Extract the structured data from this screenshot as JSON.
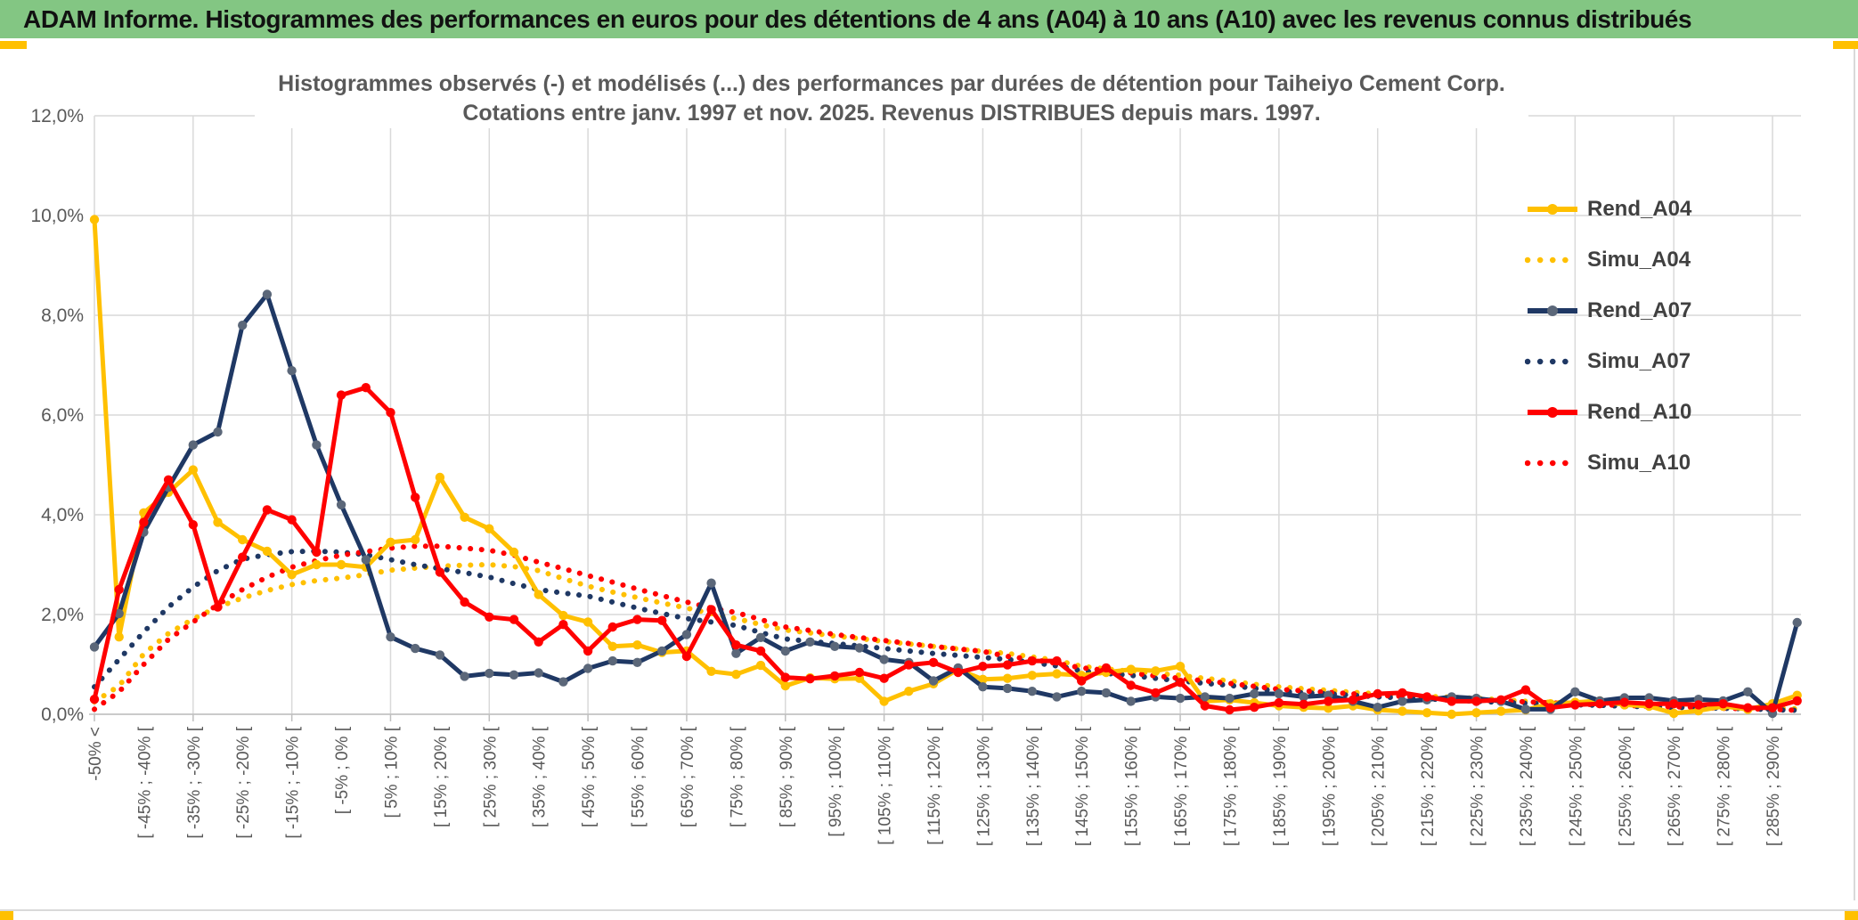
{
  "page": {
    "header_title": "ADAM Informe. Histogrammes des performances en euros pour des détentions de 4 ans (A04) à 10 ans (A10) avec les revenus connus distribués"
  },
  "chart": {
    "title_line1": "Histogrammes observés (-) et modélisés (...) des performances par durées de détention pour Taiheiyo Cement Corp.",
    "title_line2": "Cotations entre janv. 1997 et nov. 2025. Revenus DISTRIBUES depuis mars. 1997.",
    "colors": {
      "header_green": "#83C683",
      "accent_gold": "#FFC000",
      "series_gold": "#FFC000",
      "series_navy": "#1F3864",
      "navy_marker_gray": "#5B6779",
      "series_red": "#FF0000",
      "grid_gray": "#D9D9D9",
      "axis_gray": "#BFBFBF",
      "text_gray": "#595959",
      "legend_text": "#404040"
    }
  },
  "chart_data": {
    "type": "line",
    "title": "Histogrammes observés (-) et modélisés (...) des performances par durées de détention pour Taiheiyo Cement Corp.",
    "subtitle": "Cotations entre janv. 1997 et nov. 2025. Revenus DISTRIBUES depuis mars. 1997.",
    "xlabel": "",
    "ylabel": "",
    "ylim": [
      0,
      12
    ],
    "grid": true,
    "legend_position": "right",
    "y_ticks": [
      "0,0%",
      "2,0%",
      "4,0%",
      "6,0%",
      "8,0%",
      "10,0%",
      "12,0%"
    ],
    "n_points": 70,
    "bin_width_pct": 5,
    "label_every_n_points": 2,
    "x_tick_labels": [
      "-50% <",
      "[ -45% ; -40% [",
      "[ -35% ; -30% [",
      "[ -25% ; -20% [",
      "[ -15% ; -10% [",
      "[ -5% ; 0% [",
      "[ 5% ; 10% [",
      "[ 15% ; 20% [",
      "[ 25% ; 30% [",
      "[ 35% ; 40% [",
      "[ 45% ; 50% [",
      "[ 55% ; 60% [",
      "[ 65% ; 70% [",
      "[ 75% ; 80% [",
      "[ 85% ; 90% [",
      "[ 95% ; 100% [",
      "[ 105% ; 110% [",
      "[ 115% ; 120% [",
      "[ 125% ; 130% [",
      "[ 135% ; 140% [",
      "[ 145% ; 150% [",
      "[ 155% ; 160% [",
      "[ 165% ; 170% [",
      "[ 175% ; 180% [",
      "[ 185% ; 190% [",
      "[ 195% ; 200% [",
      "[ 205% ; 210% [",
      "[ 215% ; 220% [",
      "[ 225% ; 230% [",
      "[ 235% ; 240% [",
      "[ 245% ; 250% [",
      "[ 255% ; 260% [",
      "[ 265% ; 270% [",
      "[ 275% ; 280% [",
      "[ 285% ; 290% ["
    ],
    "series": [
      {
        "name": "Rend_A04",
        "color": "#FFC000",
        "style": "solid",
        "marker": true,
        "marker_color": "#FFC000",
        "values": [
          9.92,
          1.55,
          4.04,
          4.45,
          4.9,
          3.85,
          3.5,
          3.27,
          2.8,
          3.0,
          3.0,
          2.95,
          3.45,
          3.5,
          4.75,
          3.95,
          3.72,
          3.25,
          2.4,
          1.98,
          1.85,
          1.36,
          1.39,
          1.24,
          1.27,
          0.86,
          0.8,
          0.98,
          0.57,
          0.73,
          0.71,
          0.72,
          0.26,
          0.46,
          0.61,
          0.9,
          0.7,
          0.72,
          0.78,
          0.81,
          0.78,
          0.84,
          0.9,
          0.87,
          0.96,
          0.26,
          0.29,
          0.23,
          0.17,
          0.14,
          0.12,
          0.17,
          0.09,
          0.06,
          0.03,
          0.0,
          0.03,
          0.06,
          0.09,
          0.21,
          0.24,
          0.27,
          0.19,
          0.16,
          0.02,
          0.07,
          0.16,
          0.1,
          0.21,
          0.38
        ]
      },
      {
        "name": "Simu_A04",
        "color": "#FFC000",
        "style": "dotted",
        "marker": false,
        "marker_color": "#FFC000",
        "values": [
          0.25,
          0.57,
          1.21,
          1.62,
          1.91,
          2.15,
          2.33,
          2.48,
          2.6,
          2.68,
          2.73,
          2.8,
          2.89,
          2.93,
          2.97,
          2.99,
          3.0,
          2.96,
          2.88,
          2.72,
          2.57,
          2.45,
          2.34,
          2.23,
          2.13,
          2.02,
          1.92,
          1.8,
          1.69,
          1.63,
          1.57,
          1.52,
          1.46,
          1.41,
          1.36,
          1.31,
          1.26,
          1.22,
          1.15,
          1.08,
          0.96,
          0.91,
          0.86,
          0.82,
          0.78,
          0.72,
          0.67,
          0.6,
          0.55,
          0.51,
          0.48,
          0.44,
          0.41,
          0.38,
          0.36,
          0.34,
          0.32,
          0.29,
          0.26,
          0.24,
          0.22,
          0.21,
          0.19,
          0.18,
          0.16,
          0.15,
          0.14,
          0.13,
          0.12,
          0.11
        ]
      },
      {
        "name": "Rend_A07",
        "color": "#1F3864",
        "style": "solid",
        "marker": true,
        "marker_color": "#5B6779",
        "values": [
          1.35,
          2.02,
          3.65,
          4.55,
          5.4,
          5.66,
          7.8,
          8.42,
          6.89,
          5.4,
          4.2,
          3.1,
          1.55,
          1.32,
          1.19,
          0.76,
          0.82,
          0.79,
          0.83,
          0.65,
          0.92,
          1.07,
          1.04,
          1.27,
          1.6,
          2.63,
          1.22,
          1.54,
          1.27,
          1.45,
          1.36,
          1.33,
          1.1,
          1.04,
          0.67,
          0.93,
          0.55,
          0.52,
          0.46,
          0.35,
          0.46,
          0.43,
          0.26,
          0.35,
          0.32,
          0.35,
          0.32,
          0.41,
          0.41,
          0.35,
          0.38,
          0.26,
          0.14,
          0.26,
          0.29,
          0.35,
          0.32,
          0.26,
          0.1,
          0.1,
          0.45,
          0.27,
          0.33,
          0.33,
          0.27,
          0.3,
          0.27,
          0.45,
          0.02,
          1.84
        ]
      },
      {
        "name": "Simu_A07",
        "color": "#1F3864",
        "style": "dotted",
        "marker": false,
        "marker_color": "#1F3864",
        "values": [
          0.55,
          1.1,
          1.65,
          2.15,
          2.55,
          2.88,
          3.11,
          3.2,
          3.26,
          3.27,
          3.25,
          3.2,
          3.1,
          3.0,
          2.92,
          2.84,
          2.75,
          2.62,
          2.5,
          2.43,
          2.37,
          2.25,
          2.13,
          2.02,
          1.92,
          1.85,
          1.78,
          1.64,
          1.51,
          1.46,
          1.42,
          1.37,
          1.32,
          1.27,
          1.22,
          1.18,
          1.14,
          1.1,
          1.04,
          0.97,
          0.87,
          0.82,
          0.78,
          0.72,
          0.67,
          0.62,
          0.58,
          0.52,
          0.46,
          0.43,
          0.41,
          0.38,
          0.35,
          0.33,
          0.31,
          0.28,
          0.26,
          0.24,
          0.22,
          0.21,
          0.19,
          0.18,
          0.16,
          0.15,
          0.14,
          0.13,
          0.12,
          0.11,
          0.09,
          0.08
        ]
      },
      {
        "name": "Rend_A10",
        "color": "#FF0000",
        "style": "solid",
        "marker": true,
        "marker_color": "#FF0000",
        "values": [
          0.3,
          2.5,
          3.85,
          4.7,
          3.8,
          2.15,
          3.15,
          4.1,
          3.9,
          3.25,
          6.4,
          6.55,
          6.05,
          4.35,
          2.85,
          2.25,
          1.95,
          1.9,
          1.45,
          1.8,
          1.27,
          1.75,
          1.9,
          1.88,
          1.16,
          2.1,
          1.39,
          1.27,
          0.74,
          0.71,
          0.77,
          0.84,
          0.72,
          0.99,
          1.04,
          0.84,
          0.96,
          0.99,
          1.07,
          1.07,
          0.67,
          0.93,
          0.58,
          0.43,
          0.64,
          0.17,
          0.09,
          0.14,
          0.23,
          0.2,
          0.26,
          0.29,
          0.41,
          0.43,
          0.35,
          0.26,
          0.26,
          0.29,
          0.49,
          0.13,
          0.19,
          0.21,
          0.24,
          0.21,
          0.21,
          0.19,
          0.21,
          0.13,
          0.13,
          0.27
        ]
      },
      {
        "name": "Simu_A10",
        "color": "#FF0000",
        "style": "dotted",
        "marker": false,
        "marker_color": "#FF0000",
        "values": [
          0.1,
          0.45,
          1.0,
          1.5,
          1.85,
          2.2,
          2.5,
          2.75,
          2.95,
          3.08,
          3.19,
          3.26,
          3.33,
          3.37,
          3.37,
          3.33,
          3.29,
          3.19,
          3.05,
          2.92,
          2.78,
          2.65,
          2.51,
          2.38,
          2.25,
          2.13,
          2.04,
          1.9,
          1.75,
          1.68,
          1.6,
          1.54,
          1.48,
          1.42,
          1.36,
          1.31,
          1.26,
          1.16,
          1.1,
          1.02,
          0.93,
          0.88,
          0.83,
          0.77,
          0.72,
          0.67,
          0.62,
          0.56,
          0.5,
          0.47,
          0.44,
          0.41,
          0.38,
          0.36,
          0.34,
          0.31,
          0.29,
          0.27,
          0.25,
          0.23,
          0.21,
          0.19,
          0.18,
          0.16,
          0.15,
          0.14,
          0.12,
          0.11,
          0.1,
          0.08
        ]
      }
    ]
  }
}
